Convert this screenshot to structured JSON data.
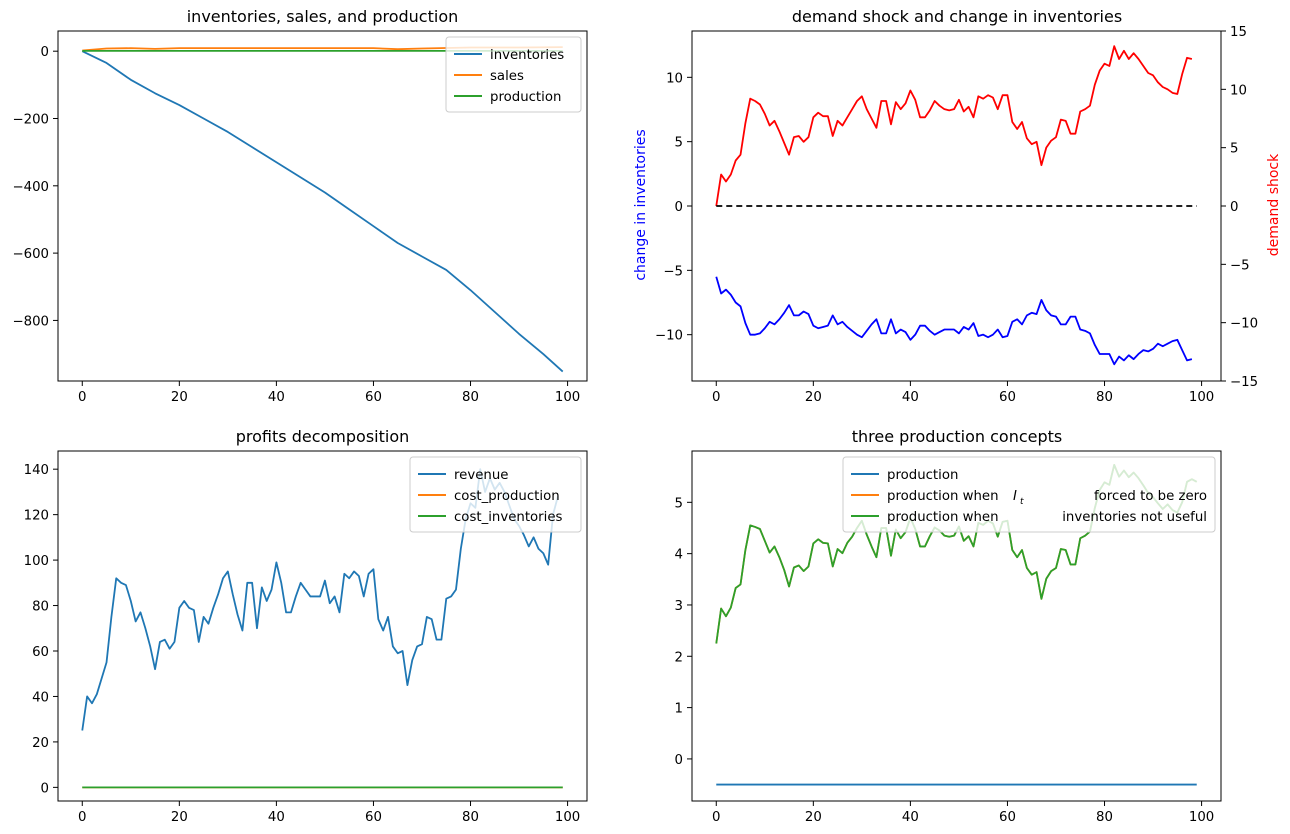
{
  "chart_data": [
    {
      "type": "line",
      "title": "inventories, sales, and production",
      "xlabel": "",
      "ylabel": "",
      "xlim": [
        -5,
        104
      ],
      "ylim": [
        -980,
        60
      ],
      "xticks": [
        0,
        20,
        40,
        60,
        80,
        100
      ],
      "yticks": [
        0,
        -200,
        -400,
        -600,
        -800
      ],
      "ytick_labels": [
        "0",
        "−200",
        "−400",
        "−600",
        "−800"
      ],
      "legend_placement": "top-right",
      "series": [
        {
          "name": "inventories",
          "color": "#1f77b4",
          "points": [
            [
              0,
              0
            ],
            [
              5,
              -35
            ],
            [
              10,
              -85
            ],
            [
              15,
              -125
            ],
            [
              20,
              -160
            ],
            [
              25,
              -200
            ],
            [
              30,
              -240
            ],
            [
              35,
              -285
            ],
            [
              40,
              -330
            ],
            [
              45,
              -375
            ],
            [
              50,
              -420
            ],
            [
              55,
              -470
            ],
            [
              60,
              -520
            ],
            [
              65,
              -570
            ],
            [
              70,
              -610
            ],
            [
              75,
              -650
            ],
            [
              80,
              -710
            ],
            [
              85,
              -775
            ],
            [
              90,
              -840
            ],
            [
              95,
              -900
            ],
            [
              99,
              -952
            ]
          ]
        },
        {
          "name": "sales",
          "color": "#ff7f0e",
          "points": [
            [
              0,
              2
            ],
            [
              5,
              8
            ],
            [
              10,
              9
            ],
            [
              15,
              7
            ],
            [
              20,
              9
            ],
            [
              30,
              9
            ],
            [
              40,
              9
            ],
            [
              50,
              9
            ],
            [
              60,
              9
            ],
            [
              65,
              6
            ],
            [
              70,
              8
            ],
            [
              80,
              11
            ],
            [
              90,
              11
            ],
            [
              99,
              12
            ]
          ]
        },
        {
          "name": "production",
          "color": "#2ca02c",
          "points": [
            [
              0,
              1
            ],
            [
              99,
              1
            ]
          ]
        }
      ]
    },
    {
      "type": "line",
      "title": "demand shock and change in inventories",
      "xlabel": "",
      "ylabel": "change in inventories",
      "ylabel_color": "#0000ff",
      "ylabel_right": "demand shock",
      "ylabel_right_color": "#ff0000",
      "xlim": [
        -5,
        104
      ],
      "ylim": [
        -13.6,
        13.6
      ],
      "ylim_right": [
        -15,
        15
      ],
      "xticks": [
        0,
        20,
        40,
        60,
        80,
        100
      ],
      "yticks": [
        10,
        5,
        0,
        -5,
        -10
      ],
      "ytick_labels": [
        "10",
        "5",
        "0",
        "−5",
        "−10"
      ],
      "yticks_right": [
        15,
        10,
        5,
        0,
        -5,
        -10,
        -15
      ],
      "ytick_labels_right": [
        "15",
        "10",
        "5",
        "0",
        "−5",
        "−10",
        "−15"
      ],
      "series": [
        {
          "name": "change in inventories",
          "axis": "left",
          "color": "#0000ff",
          "values": [
            -5.5,
            -6.8,
            -6.5,
            -6.9,
            -7.5,
            -7.8,
            -9.1,
            -10,
            -10,
            -9.9,
            -9.5,
            -9.0,
            -9.2,
            -8.8,
            -8.3,
            -7.7,
            -8.5,
            -8.5,
            -8.2,
            -8.4,
            -9.3,
            -9.5,
            -9.4,
            -9.3,
            -8.5,
            -9.2,
            -9.0,
            -9.4,
            -9.7,
            -10.0,
            -10.2,
            -9.7,
            -9.2,
            -8.8,
            -9.9,
            -9.9,
            -8.8,
            -9.9,
            -9.6,
            -9.8,
            -10.4,
            -10.0,
            -9.3,
            -9.3,
            -9.7,
            -10.0,
            -9.8,
            -9.6,
            -9.6,
            -9.6,
            -9.9,
            -9.4,
            -9.6,
            -9.1,
            -10.1,
            -10.0,
            -10.2,
            -10.0,
            -9.6,
            -10.2,
            -10.1,
            -9.0,
            -8.8,
            -9.2,
            -8.5,
            -8.3,
            -8.4,
            -7.3,
            -8.1,
            -8.5,
            -8.6,
            -9.2,
            -9.2,
            -8.6,
            -8.6,
            -9.6,
            -9.7,
            -9.9,
            -10.8,
            -11.5,
            -11.5,
            -11.5,
            -12.3,
            -11.7,
            -12.0,
            -11.6,
            -11.9,
            -11.5,
            -11.2,
            -11.3,
            -11.1,
            -10.7,
            -10.9,
            -10.7,
            -10.5,
            -10.4,
            -11.2,
            -12.0,
            -11.9
          ]
        },
        {
          "name": "demand shock",
          "axis": "right",
          "color": "#ff0000",
          "values": [
            0,
            2.7,
            2.1,
            2.7,
            3.9,
            4.4,
            7.1,
            9.2,
            9.0,
            8.7,
            7.9,
            6.9,
            7.3,
            6.4,
            5.4,
            4.4,
            5.9,
            6.0,
            5.5,
            5.9,
            7.6,
            8.0,
            7.7,
            7.7,
            6.0,
            7.3,
            6.9,
            7.6,
            8.3,
            9.0,
            9.4,
            8.3,
            7.5,
            6.7,
            9.0,
            9.0,
            7.0,
            8.9,
            8.3,
            8.8,
            9.9,
            9.1,
            7.6,
            7.6,
            8.2,
            9.0,
            8.6,
            8.3,
            8.2,
            8.3,
            9.1,
            8.1,
            8.5,
            7.6,
            9.4,
            9.2,
            9.5,
            9.3,
            8.3,
            9.5,
            9.5,
            7.2,
            6.6,
            7.2,
            5.8,
            5.3,
            5.5,
            3.5,
            5.0,
            5.6,
            5.9,
            7.4,
            7.3,
            6.2,
            6.2,
            8.1,
            8.3,
            8.6,
            10.4,
            11.6,
            12.2,
            12.0,
            13.7,
            12.6,
            13.3,
            12.6,
            13.1,
            12.6,
            12.0,
            11.4,
            11.2,
            10.6,
            10.2,
            10.0,
            9.7,
            9.6,
            11.3,
            12.7,
            12.6
          ]
        },
        {
          "name": "",
          "axis": "left",
          "style": "dashed",
          "color": "#000000",
          "points": [
            [
              0,
              0
            ],
            [
              99,
              0
            ]
          ]
        }
      ]
    },
    {
      "type": "line",
      "title": "profits decomposition",
      "xlabel": "",
      "ylabel": "",
      "xlim": [
        -5,
        104
      ],
      "ylim": [
        -6,
        148
      ],
      "xticks": [
        0,
        20,
        40,
        60,
        80,
        100
      ],
      "yticks": [
        0,
        20,
        40,
        60,
        80,
        100,
        120,
        140
      ],
      "legend_placement": "top-right",
      "series": [
        {
          "name": "revenue",
          "color": "#1f77b4",
          "values": [
            25,
            40,
            37,
            41,
            48,
            55,
            75,
            92,
            90,
            89,
            82,
            73,
            77,
            70,
            62,
            52,
            64,
            65,
            61,
            64,
            79,
            82,
            79,
            78,
            64,
            75,
            72,
            79,
            85,
            92,
            95,
            85,
            76,
            69,
            90,
            90,
            70,
            88,
            82,
            87,
            99,
            90,
            77,
            77,
            84,
            90,
            87,
            84,
            84,
            84,
            91,
            81,
            84,
            77,
            94,
            92,
            95,
            93,
            84,
            94,
            96,
            74,
            69,
            75,
            62,
            59,
            60,
            45,
            56,
            62,
            63,
            75,
            74,
            65,
            65,
            83,
            84,
            87,
            105,
            118,
            125,
            123,
            140,
            130,
            136,
            131,
            134,
            130,
            124,
            118,
            115,
            111,
            106,
            110,
            105,
            103,
            98,
            120,
            128
          ]
        },
        {
          "name": "cost_production",
          "color": "#ff7f0e",
          "points": [
            [
              0,
              0
            ],
            [
              99,
              0
            ]
          ]
        },
        {
          "name": "cost_inventories",
          "color": "#2ca02c",
          "points": [
            [
              0,
              0
            ],
            [
              99,
              0
            ]
          ]
        }
      ]
    },
    {
      "type": "line",
      "title": "three production concepts",
      "xlabel": "",
      "ylabel": "",
      "xlim": [
        -5,
        104
      ],
      "ylim": [
        -0.82,
        6.0
      ],
      "xticks": [
        0,
        20,
        40,
        60,
        80,
        100
      ],
      "yticks": [
        0,
        1,
        2,
        3,
        4,
        5
      ],
      "legend_placement": "top-right",
      "series": [
        {
          "name": "production",
          "color": "#1f77b4",
          "points": [
            [
              0,
              -0.5
            ],
            [
              99,
              -0.5
            ]
          ]
        },
        {
          "name": "production when",
          "name_symbol": "I",
          "name_symbol_subscript": "t",
          "name_suffix": "forced to be zero",
          "color": "#ff7f0e",
          "values": [
            2.25,
            2.93,
            2.78,
            2.95,
            3.33,
            3.4,
            4.07,
            4.55,
            4.52,
            4.48,
            4.25,
            4.02,
            4.14,
            3.93,
            3.68,
            3.36,
            3.73,
            3.77,
            3.66,
            3.75,
            4.2,
            4.28,
            4.21,
            4.2,
            3.75,
            4.09,
            4.01,
            4.21,
            4.33,
            4.5,
            4.64,
            4.37,
            4.14,
            3.93,
            4.5,
            4.5,
            3.96,
            4.47,
            4.3,
            4.42,
            4.7,
            4.48,
            4.14,
            4.14,
            4.34,
            4.51,
            4.45,
            4.35,
            4.33,
            4.35,
            4.53,
            4.25,
            4.34,
            4.14,
            4.6,
            4.56,
            4.64,
            4.59,
            4.33,
            4.62,
            4.64,
            4.07,
            3.93,
            4.07,
            3.72,
            3.59,
            3.64,
            3.12,
            3.51,
            3.66,
            3.72,
            4.09,
            4.07,
            3.79,
            3.79,
            4.3,
            4.35,
            4.43,
            4.89,
            5.24,
            5.39,
            5.34,
            5.73,
            5.5,
            5.62,
            5.49,
            5.58,
            5.47,
            5.33,
            5.18,
            5.1,
            4.98,
            4.87,
            4.96,
            4.85,
            4.8,
            5.0,
            5.4,
            5.45,
            5.4
          ]
        },
        {
          "name": "production when",
          "name_suffix": "inventories not useful",
          "color": "#2ca02c",
          "values": [
            2.25,
            2.93,
            2.78,
            2.95,
            3.33,
            3.4,
            4.07,
            4.55,
            4.52,
            4.48,
            4.25,
            4.02,
            4.14,
            3.93,
            3.68,
            3.36,
            3.73,
            3.77,
            3.66,
            3.75,
            4.2,
            4.28,
            4.21,
            4.2,
            3.75,
            4.09,
            4.01,
            4.21,
            4.33,
            4.5,
            4.64,
            4.37,
            4.14,
            3.93,
            4.5,
            4.5,
            3.96,
            4.47,
            4.3,
            4.42,
            4.7,
            4.48,
            4.14,
            4.14,
            4.34,
            4.51,
            4.45,
            4.35,
            4.33,
            4.35,
            4.53,
            4.25,
            4.34,
            4.14,
            4.6,
            4.56,
            4.64,
            4.59,
            4.33,
            4.62,
            4.64,
            4.07,
            3.93,
            4.07,
            3.72,
            3.59,
            3.64,
            3.12,
            3.51,
            3.66,
            3.72,
            4.09,
            4.07,
            3.79,
            3.79,
            4.3,
            4.35,
            4.43,
            4.89,
            5.24,
            5.39,
            5.34,
            5.73,
            5.5,
            5.62,
            5.49,
            5.58,
            5.47,
            5.33,
            5.18,
            5.1,
            4.98,
            4.87,
            4.96,
            4.85,
            4.8,
            5.0,
            5.4,
            5.45,
            5.4
          ]
        }
      ]
    }
  ]
}
